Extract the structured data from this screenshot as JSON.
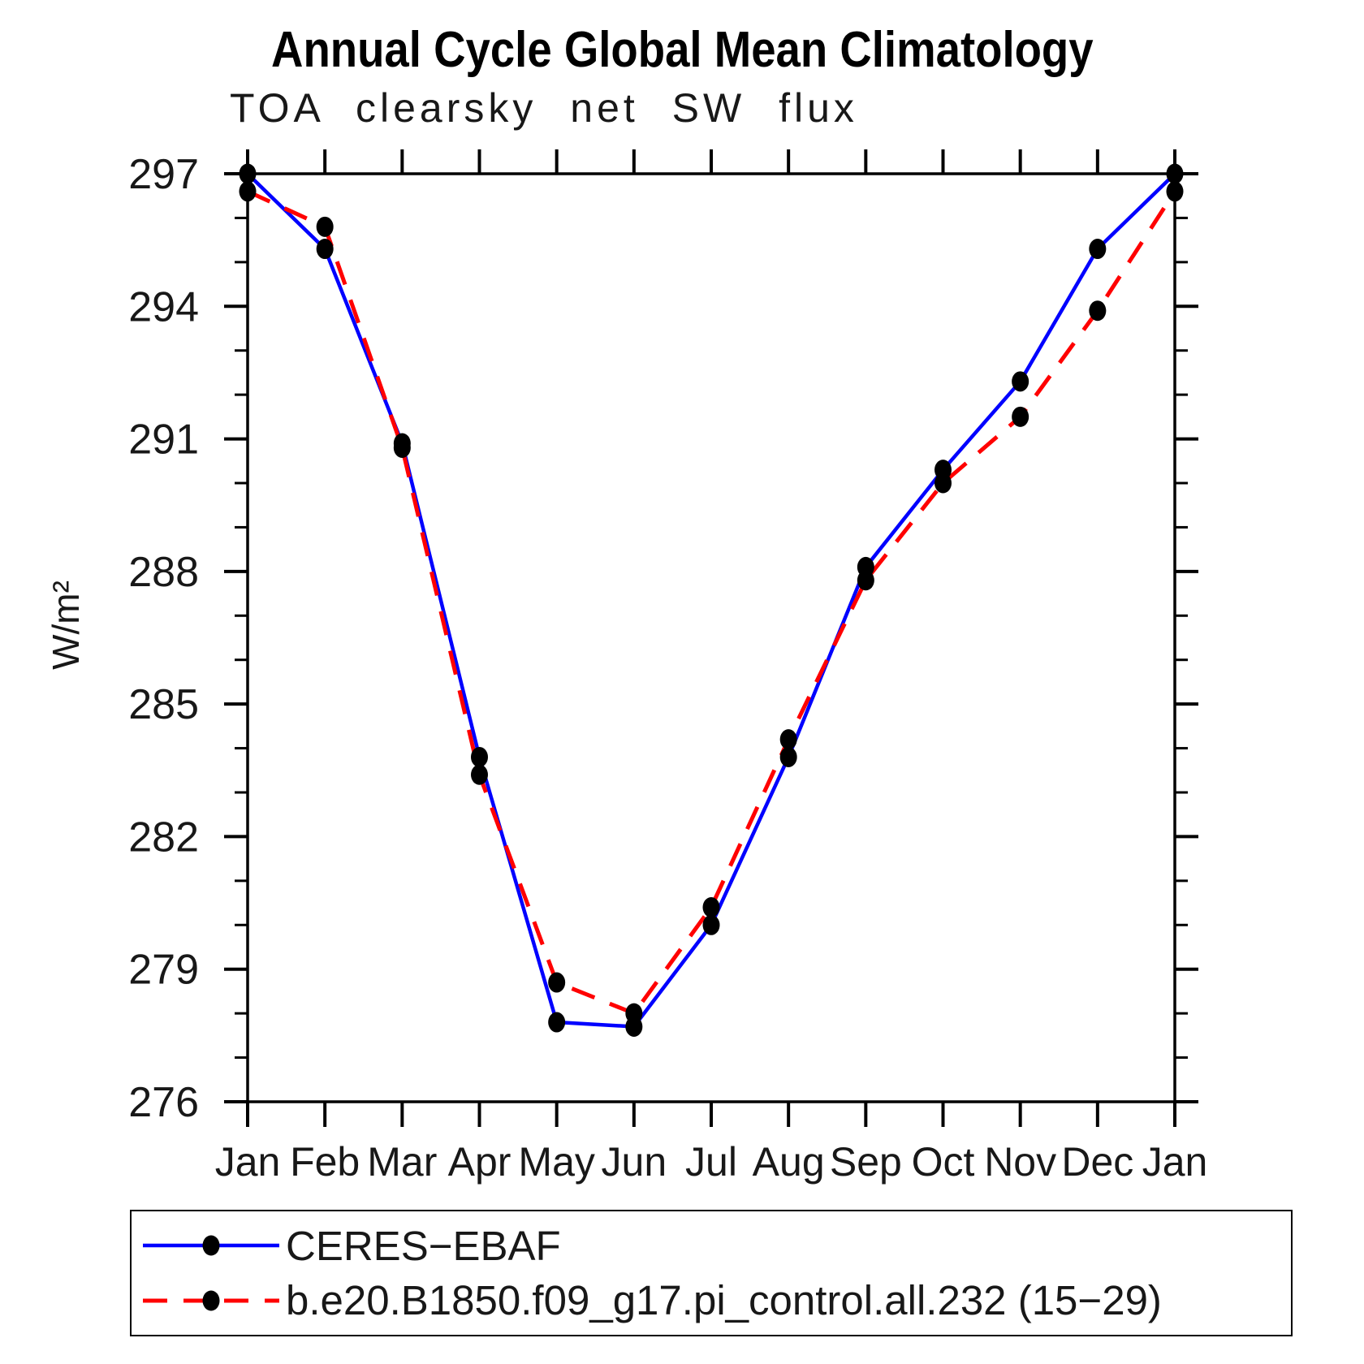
{
  "chart_data": {
    "type": "line",
    "title": "Annual Cycle Global Mean Climatology",
    "subtitle": "TOA clearsky net SW flux",
    "ylabel": "W/m²",
    "xlabel": "",
    "categories": [
      "Jan",
      "Feb",
      "Mar",
      "Apr",
      "May",
      "Jun",
      "Jul",
      "Aug",
      "Sep",
      "Oct",
      "Nov",
      "Dec",
      "Jan"
    ],
    "ylim": [
      276,
      297
    ],
    "yticks_major": [
      276,
      279,
      282,
      285,
      288,
      291,
      294,
      297
    ],
    "ytick_minor_step": 1,
    "grid": false,
    "legend_position": "bottom-left-box",
    "marker_color": "#000000",
    "axis_color": "#000000",
    "series": [
      {
        "name": "CERES−EBAF",
        "color": "#0000ff",
        "line_style": "solid",
        "marker": "filled-circle",
        "values": [
          297.0,
          295.3,
          290.9,
          283.8,
          277.8,
          277.7,
          280.0,
          283.8,
          288.1,
          290.3,
          292.3,
          295.3,
          297.0
        ]
      },
      {
        "name": "b.e20.B1850.f09_g17.pi_control.all.232 (15−29)",
        "color": "#ff0000",
        "line_style": "dashed",
        "marker": "filled-circle",
        "values": [
          296.6,
          295.8,
          290.8,
          283.4,
          278.7,
          278.0,
          280.4,
          284.2,
          287.8,
          290.0,
          291.5,
          293.9,
          296.6
        ]
      }
    ]
  }
}
